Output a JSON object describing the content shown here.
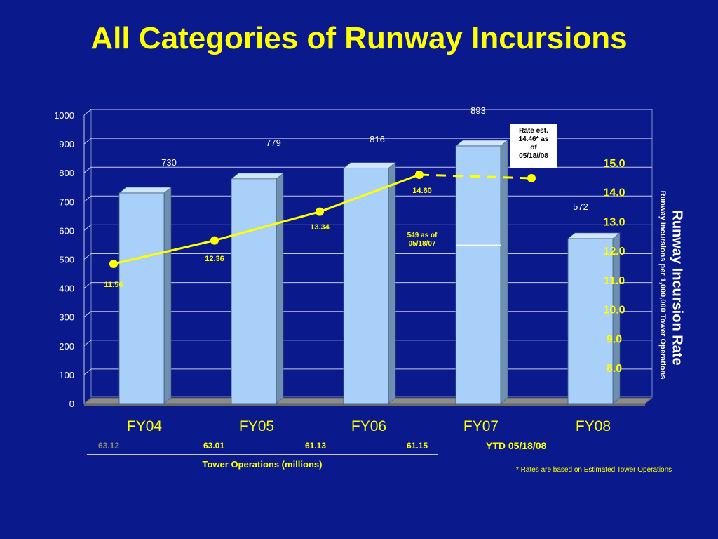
{
  "title": "All Categories of Runway Incursions",
  "chart_data": {
    "type": "bar",
    "categories": [
      "FY04",
      "FY05",
      "FY06",
      "FY07",
      "FY08"
    ],
    "series": [
      {
        "values": [
          730,
          779,
          816,
          893,
          572
        ]
      }
    ],
    "value_labels": [
      "730",
      "779",
      "816",
      "893",
      "572"
    ],
    "fy07_ytd_segment": 549,
    "ylim": [
      0,
      1000
    ],
    "yticks": [
      0,
      100,
      200,
      300,
      400,
      500,
      600,
      700,
      800,
      900,
      1000
    ],
    "rate_line": {
      "categories": [
        "FY04",
        "FY05",
        "FY06",
        "FY07"
      ],
      "values": [
        11.56,
        12.36,
        13.34,
        14.6
      ],
      "labels": [
        "11.56",
        "12.36",
        "13.34",
        "14.60"
      ],
      "estimated_value": 14.46,
      "color": "#ffff00"
    },
    "rate_axis": {
      "ticks": [
        "15.0",
        "14.0",
        "13.0",
        "12.0",
        "11.0",
        "10.0",
        "9.0",
        "8.0"
      ],
      "title": "Runway Incursion Rate",
      "subtitle": "Runway Incursions per 1,000,000 Tower Operations"
    },
    "annotations": {
      "fy07_partial": [
        "549 as of",
        "05/18/07"
      ],
      "rate_estimate": [
        "Rate est.",
        "14.46* as",
        "of",
        "05/18//08"
      ]
    },
    "colors": {
      "bar": "#a8d0f8",
      "bar_side": "#6f8fb0",
      "bar_top": "#cfe5fc",
      "background": "#0a1a8c",
      "accent": "#ffff00"
    }
  },
  "operations": {
    "values": [
      "63.12",
      "63.01",
      "61.13",
      "61.15"
    ],
    "caption": "Tower Operations  (millions)",
    "ytd": "YTD 05/18/08"
  },
  "footnote": "* Rates are based on Estimated Tower Operations"
}
